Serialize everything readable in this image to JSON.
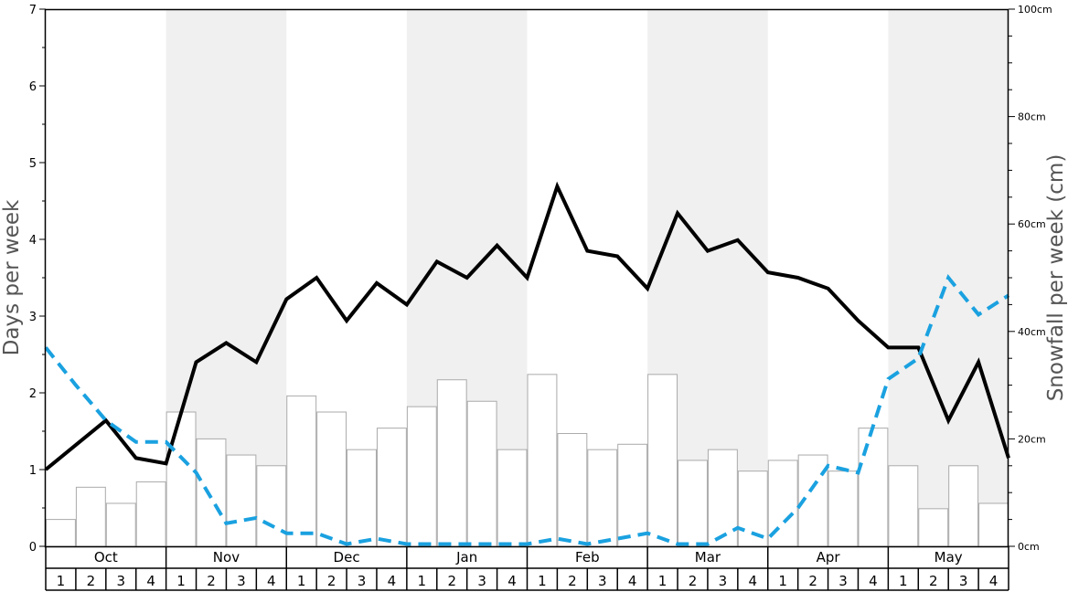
{
  "chart_data": {
    "type": "bar",
    "title": "",
    "ylabel_left": "Days per week",
    "ylabel_right": "Snowfall per week (cm)",
    "ylim_left": [
      0,
      7
    ],
    "ylim_right": [
      0,
      100
    ],
    "yticks_left": [
      "0",
      "1",
      "2",
      "3",
      "4",
      "5",
      "6",
      "7"
    ],
    "yticks_right": [
      "0cm",
      "20cm",
      "40cm",
      "60cm",
      "80cm",
      "100cm"
    ],
    "months": [
      "Oct",
      "Nov",
      "Dec",
      "Jan",
      "Feb",
      "Mar",
      "Apr",
      "May"
    ],
    "weeks_per_month": [
      "1",
      "2",
      "3",
      "4"
    ],
    "shaded_months": [
      "Nov",
      "Jan",
      "Mar",
      "May"
    ],
    "grid": false,
    "legend": "none",
    "colors": {
      "bar_fill": "#ffffff",
      "bar_stroke": "#aaaaaa",
      "black_line": "#000000",
      "blue_dashed_line": "#1aa1e0",
      "shade": "#f0f0f0"
    },
    "series": [
      {
        "type": "bar",
        "axis": "right",
        "values": [
          5,
          11,
          8,
          12,
          25,
          20,
          17,
          15,
          28,
          25,
          18,
          22,
          26,
          31,
          27,
          18,
          32,
          21,
          18,
          19,
          32,
          16,
          18,
          14,
          16,
          17,
          14,
          22,
          15,
          7,
          15,
          8
        ]
      },
      {
        "type": "line",
        "style": "solid",
        "axis": "left",
        "values": [
          1.0,
          1.32,
          1.64,
          1.15,
          1.08,
          2.4,
          2.65,
          2.4,
          3.22,
          3.5,
          2.94,
          3.43,
          3.15,
          3.71,
          3.5,
          3.92,
          3.5,
          4.69,
          3.85,
          3.78,
          3.36,
          4.34,
          3.85,
          3.99,
          3.57,
          3.5,
          3.36,
          2.94,
          2.59,
          2.59,
          1.64,
          2.4,
          1.15
        ]
      },
      {
        "type": "line",
        "style": "dashed",
        "axis": "left",
        "values": [
          2.59,
          2.1,
          1.64,
          1.36,
          1.36,
          0.96,
          0.3,
          0.37,
          0.17,
          0.17,
          0.03,
          0.1,
          0.03,
          0.03,
          0.03,
          0.03,
          0.03,
          0.1,
          0.03,
          0.1,
          0.17,
          0.03,
          0.03,
          0.24,
          0.1,
          0.5,
          1.05,
          0.96,
          2.18,
          2.45,
          3.5,
          3.02,
          3.27
        ]
      }
    ]
  }
}
